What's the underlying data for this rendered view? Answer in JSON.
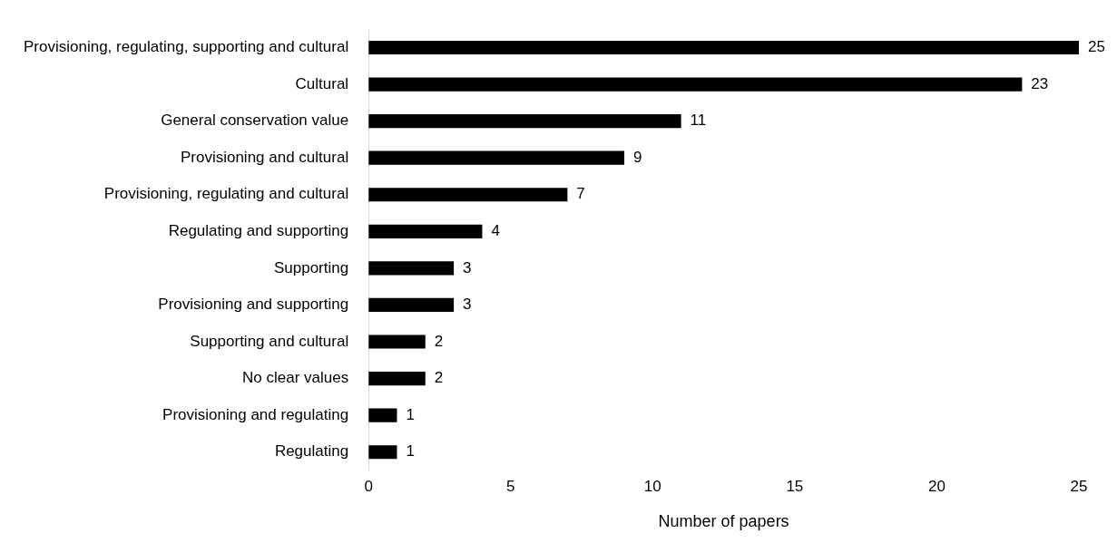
{
  "chart_data": {
    "type": "bar",
    "orientation": "horizontal",
    "xlabel": "Number of papers",
    "categories": [
      "Provisioning, regulating, supporting and cultural",
      "Cultural",
      "General conservation value",
      "Provisioning and cultural",
      "Provisioning, regulating and cultural",
      "Regulating and supporting",
      "Supporting",
      "Provisioning and supporting",
      "Supporting and cultural",
      "No clear values",
      "Provisioning and regulating",
      "Regulating"
    ],
    "values": [
      25,
      23,
      11,
      9,
      7,
      4,
      3,
      3,
      2,
      2,
      1,
      1
    ],
    "color": "#000000",
    "xlim": [
      0,
      25
    ],
    "xticks": [
      0,
      5,
      10,
      15,
      20,
      25
    ],
    "grid": false,
    "legend": false,
    "data_labels": true
  }
}
